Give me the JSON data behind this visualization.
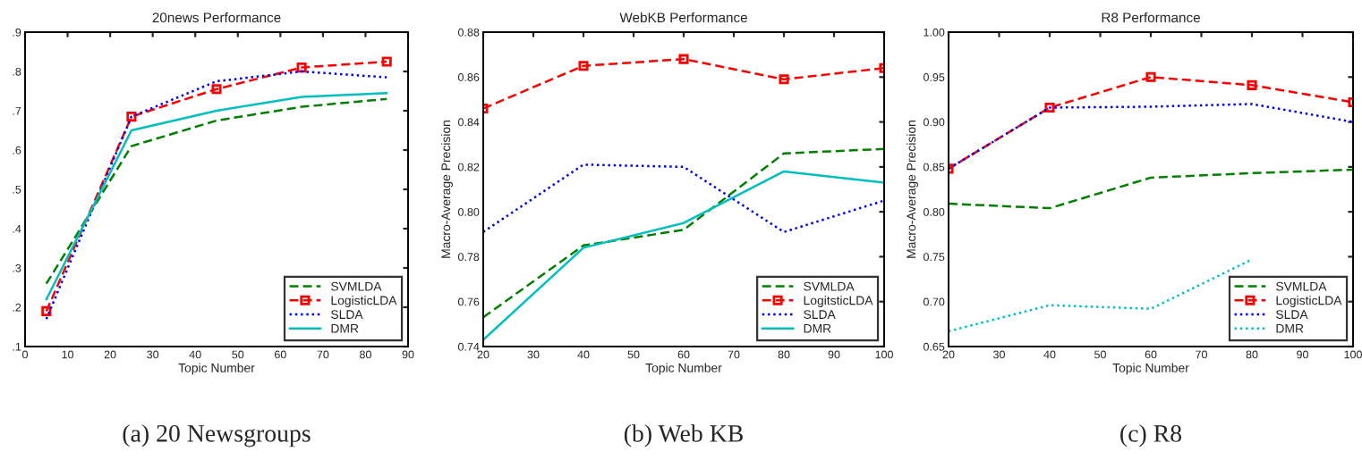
{
  "chart_data": [
    {
      "type": "line",
      "title": "20news Performance",
      "xlabel": "Topic Number",
      "x": [
        5,
        25,
        45,
        65,
        85
      ],
      "xlim": [
        0,
        90
      ],
      "xticks": [
        0,
        10,
        20,
        30,
        40,
        50,
        60,
        70,
        80,
        90
      ],
      "ylim": [
        0.1,
        0.9
      ],
      "yticks": [
        {
          "value": 0.1,
          "label": ".1"
        },
        {
          "value": 0.2,
          "label": ".2"
        },
        {
          "value": 0.3,
          "label": ".3"
        },
        {
          "value": 0.4,
          "label": ".4"
        },
        {
          "value": 0.5,
          "label": ".5"
        },
        {
          "value": 0.6,
          "label": ".6"
        },
        {
          "value": 0.7,
          "label": ".7"
        },
        {
          "value": 0.8,
          "label": ".8"
        },
        {
          "value": 0.9,
          "label": ".9"
        }
      ],
      "series": [
        {
          "name": "SVMLDA",
          "color": "#008000",
          "line_style": "dashed",
          "values": [
            0.26,
            0.61,
            0.675,
            0.71,
            0.73
          ]
        },
        {
          "name": "LogisticLDA",
          "color": "#ff0000",
          "line_style": "dashed",
          "marker": "square",
          "values": [
            0.19,
            0.685,
            0.755,
            0.81,
            0.825
          ]
        },
        {
          "name": "SLDA",
          "color": "#0000ff",
          "line_style": "dotted",
          "values": [
            0.17,
            0.685,
            0.775,
            0.8,
            0.785
          ]
        },
        {
          "name": "DMR",
          "color": "#00bfbf",
          "line_style": "solid",
          "values": [
            0.22,
            0.65,
            0.7,
            0.735,
            0.745
          ]
        }
      ],
      "legend": "bottom right",
      "grid": false,
      "annotations": [
        "(a) 20 Newsgroups"
      ]
    },
    {
      "type": "line",
      "title": "WebKB Performance",
      "xlabel": "Topic Number",
      "ylabel": "Macro-Average Precision",
      "x": [
        20,
        40,
        60,
        80,
        100
      ],
      "xlim": [
        20,
        100
      ],
      "xticks": [
        20,
        30,
        40,
        50,
        60,
        70,
        80,
        90,
        100
      ],
      "ylim": [
        0.74,
        0.88
      ],
      "yticks": [
        0.74,
        0.76,
        0.78,
        {
          "value": 0.8,
          "label": "0.80"
        },
        0.82,
        0.84,
        0.86,
        0.88
      ],
      "series": [
        {
          "name": "SVMLDA",
          "color": "#008000",
          "line_style": "dashed",
          "values": [
            0.753,
            0.785,
            0.792,
            0.826,
            0.828
          ]
        },
        {
          "name": "LogitsticLDA",
          "color": "#ff0000",
          "line_style": "dashed",
          "marker": "square",
          "values": [
            0.846,
            0.865,
            0.868,
            0.859,
            0.864
          ]
        },
        {
          "name": "SLDA",
          "color": "#0000ff",
          "line_style": "dotted",
          "values": [
            0.791,
            0.821,
            0.82,
            0.791,
            0.805
          ]
        },
        {
          "name": "DMR",
          "color": "#00bfbf",
          "line_style": "solid",
          "values": [
            0.743,
            0.784,
            0.795,
            0.818,
            0.813
          ]
        }
      ],
      "legend": "bottom right",
      "grid": false,
      "annotations": [
        "(b) Web KB"
      ]
    },
    {
      "type": "line",
      "title": "R8 Performance",
      "xlabel": "Topic Number",
      "ylabel": "Macro-Average Precision",
      "x": [
        20,
        40,
        60,
        80,
        100
      ],
      "xlim": [
        20,
        100
      ],
      "xticks": [
        20,
        30,
        40,
        50,
        60,
        70,
        80,
        90,
        100
      ],
      "ylim": [
        0.65,
        1.0
      ],
      "yticks": [
        {
          "value": 0.65,
          "label": "0.65"
        },
        {
          "value": 0.7,
          "label": "0.70"
        },
        {
          "value": 0.75,
          "label": "0.75"
        },
        {
          "value": 0.8,
          "label": "0.80"
        },
        {
          "value": 0.85,
          "label": "0.85"
        },
        {
          "value": 0.9,
          "label": "0.90"
        },
        {
          "value": 0.95,
          "label": "0.95"
        },
        {
          "value": 1.0,
          "label": "1.00"
        }
      ],
      "series": [
        {
          "name": "SVMLDA",
          "color": "#008000",
          "line_style": "dashed",
          "values": [
            0.809,
            0.804,
            0.838,
            0.843,
            0.847
          ]
        },
        {
          "name": "LogisticLDA",
          "color": "#ff0000",
          "line_style": "dashed",
          "marker": "square",
          "values": [
            0.848,
            0.916,
            0.95,
            0.941,
            0.922
          ]
        },
        {
          "name": "SLDA",
          "color": "#0000ff",
          "line_style": "dotted",
          "values": [
            0.848,
            0.916,
            0.917,
            0.92,
            0.9
          ]
        },
        {
          "name": "DMR",
          "color": "#00bfbf",
          "line_style": "dotted",
          "values": [
            0.667,
            0.696,
            0.692,
            0.747,
            null
          ]
        }
      ],
      "legend": "bottom right",
      "grid": false,
      "annotations": [
        "(c) R8"
      ]
    }
  ]
}
